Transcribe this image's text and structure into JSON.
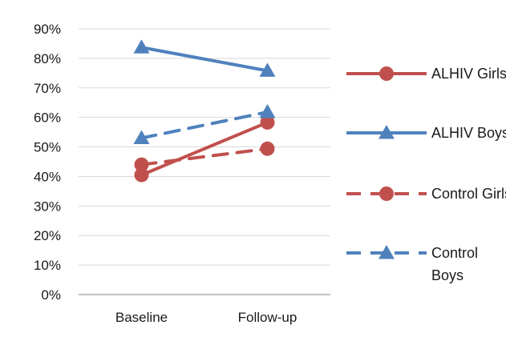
{
  "chart_data": {
    "type": "line",
    "categories": [
      "Baseline",
      "Follow-up"
    ],
    "ylim": [
      0,
      0.9
    ],
    "yticks": [
      "0%",
      "10%",
      "20%",
      "30%",
      "40%",
      "50%",
      "60%",
      "70%",
      "80%",
      "90%"
    ],
    "grid": true,
    "legend_position": "right",
    "series": [
      {
        "name": "ALHIV Girls",
        "values": [
          0.405,
          0.583
        ],
        "color": "#c0504d",
        "dash": false,
        "marker": "circle-icon"
      },
      {
        "name": "ALHIV Boys",
        "values": [
          0.837,
          0.758
        ],
        "color": "#4f81bd",
        "dash": false,
        "marker": "triangle-icon"
      },
      {
        "name": "Control Girls",
        "values": [
          0.44,
          0.494
        ],
        "color": "#c0504d",
        "dash": true,
        "marker": "circle-icon"
      },
      {
        "name": "Control Boys",
        "values": [
          0.53,
          0.618
        ],
        "color": "#4f81bd",
        "dash": true,
        "marker": "triangle-icon"
      }
    ]
  }
}
